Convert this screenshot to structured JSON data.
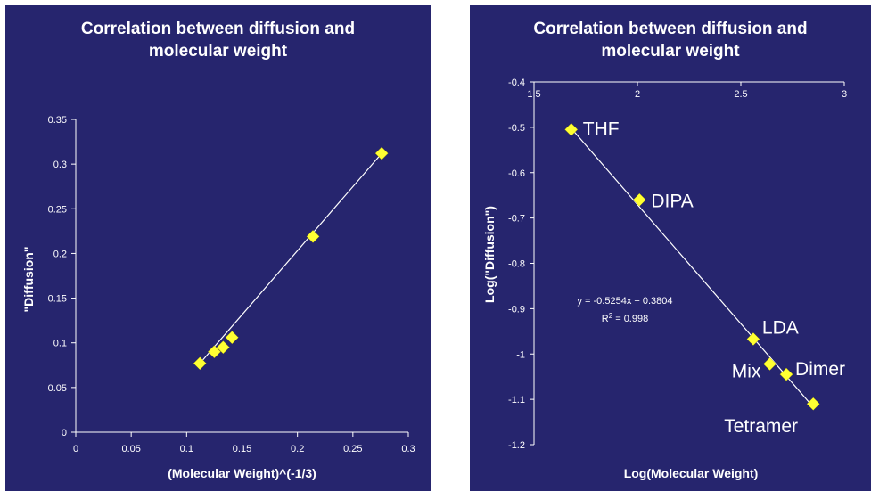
{
  "chart_data": [
    {
      "type": "scatter",
      "title_line1": "Correlation between diffusion and",
      "title_line2": "molecular weight",
      "xlabel": "(Molecular Weight)^(-1/3)",
      "ylabel": "\"Diffusion\"",
      "xlim": [
        0,
        0.3
      ],
      "ylim": [
        0,
        0.35
      ],
      "xticks": [
        "0",
        "0.05",
        "0.1",
        "0.15",
        "0.2",
        "0.25",
        "0.3"
      ],
      "yticks": [
        "0",
        "0.05",
        "0.1",
        "0.15",
        "0.2",
        "0.25",
        "0.3",
        "0.35"
      ],
      "grid": false,
      "points": [
        {
          "x": 0.112,
          "y": 0.077
        },
        {
          "x": 0.125,
          "y": 0.09
        },
        {
          "x": 0.133,
          "y": 0.095
        },
        {
          "x": 0.141,
          "y": 0.106
        },
        {
          "x": 0.214,
          "y": 0.219
        },
        {
          "x": 0.276,
          "y": 0.312
        }
      ],
      "trendline": {
        "x": [
          0.112,
          0.276
        ],
        "y": [
          0.077,
          0.312
        ]
      },
      "marker_color": "#ffff33",
      "line_color": "#ffffff",
      "background_color": "#26256e"
    },
    {
      "type": "scatter",
      "title_line1": "Correlation between diffusion and",
      "title_line2": "molecular weight",
      "xlabel": "Log(Molecular Weight)",
      "ylabel": "Log(\"Diffusion\")",
      "xlim": [
        1.5,
        3
      ],
      "ylim": [
        -1.2,
        -0.4
      ],
      "x_axis_position": "top",
      "xticks": [
        "1.5",
        "2",
        "2.5",
        "3"
      ],
      "yticks": [
        "-0.4",
        "-0.5",
        "-0.6",
        "-0.7",
        "-0.8",
        "-0.9",
        "-1",
        "-1.1",
        "-1.2"
      ],
      "grid": false,
      "points": [
        {
          "x": 1.68,
          "y": -0.505,
          "label": "THF"
        },
        {
          "x": 2.01,
          "y": -0.66,
          "label": "DIPA"
        },
        {
          "x": 2.56,
          "y": -0.967,
          "label": "LDA"
        },
        {
          "x": 2.64,
          "y": -1.022,
          "label": "Mix"
        },
        {
          "x": 2.72,
          "y": -1.045,
          "label": "Dimer"
        },
        {
          "x": 2.85,
          "y": -1.11,
          "label": "Tetramer"
        }
      ],
      "trendline": {
        "slope": -0.5254,
        "intercept": 0.3804,
        "x": [
          1.68,
          2.85
        ]
      },
      "equation": "y = -0.5254x + 0.3804",
      "r2_prefix": "R",
      "r2_suffix": " = 0.998",
      "marker_color": "#ffff33",
      "line_color": "#ffffff",
      "background_color": "#26256e"
    }
  ]
}
